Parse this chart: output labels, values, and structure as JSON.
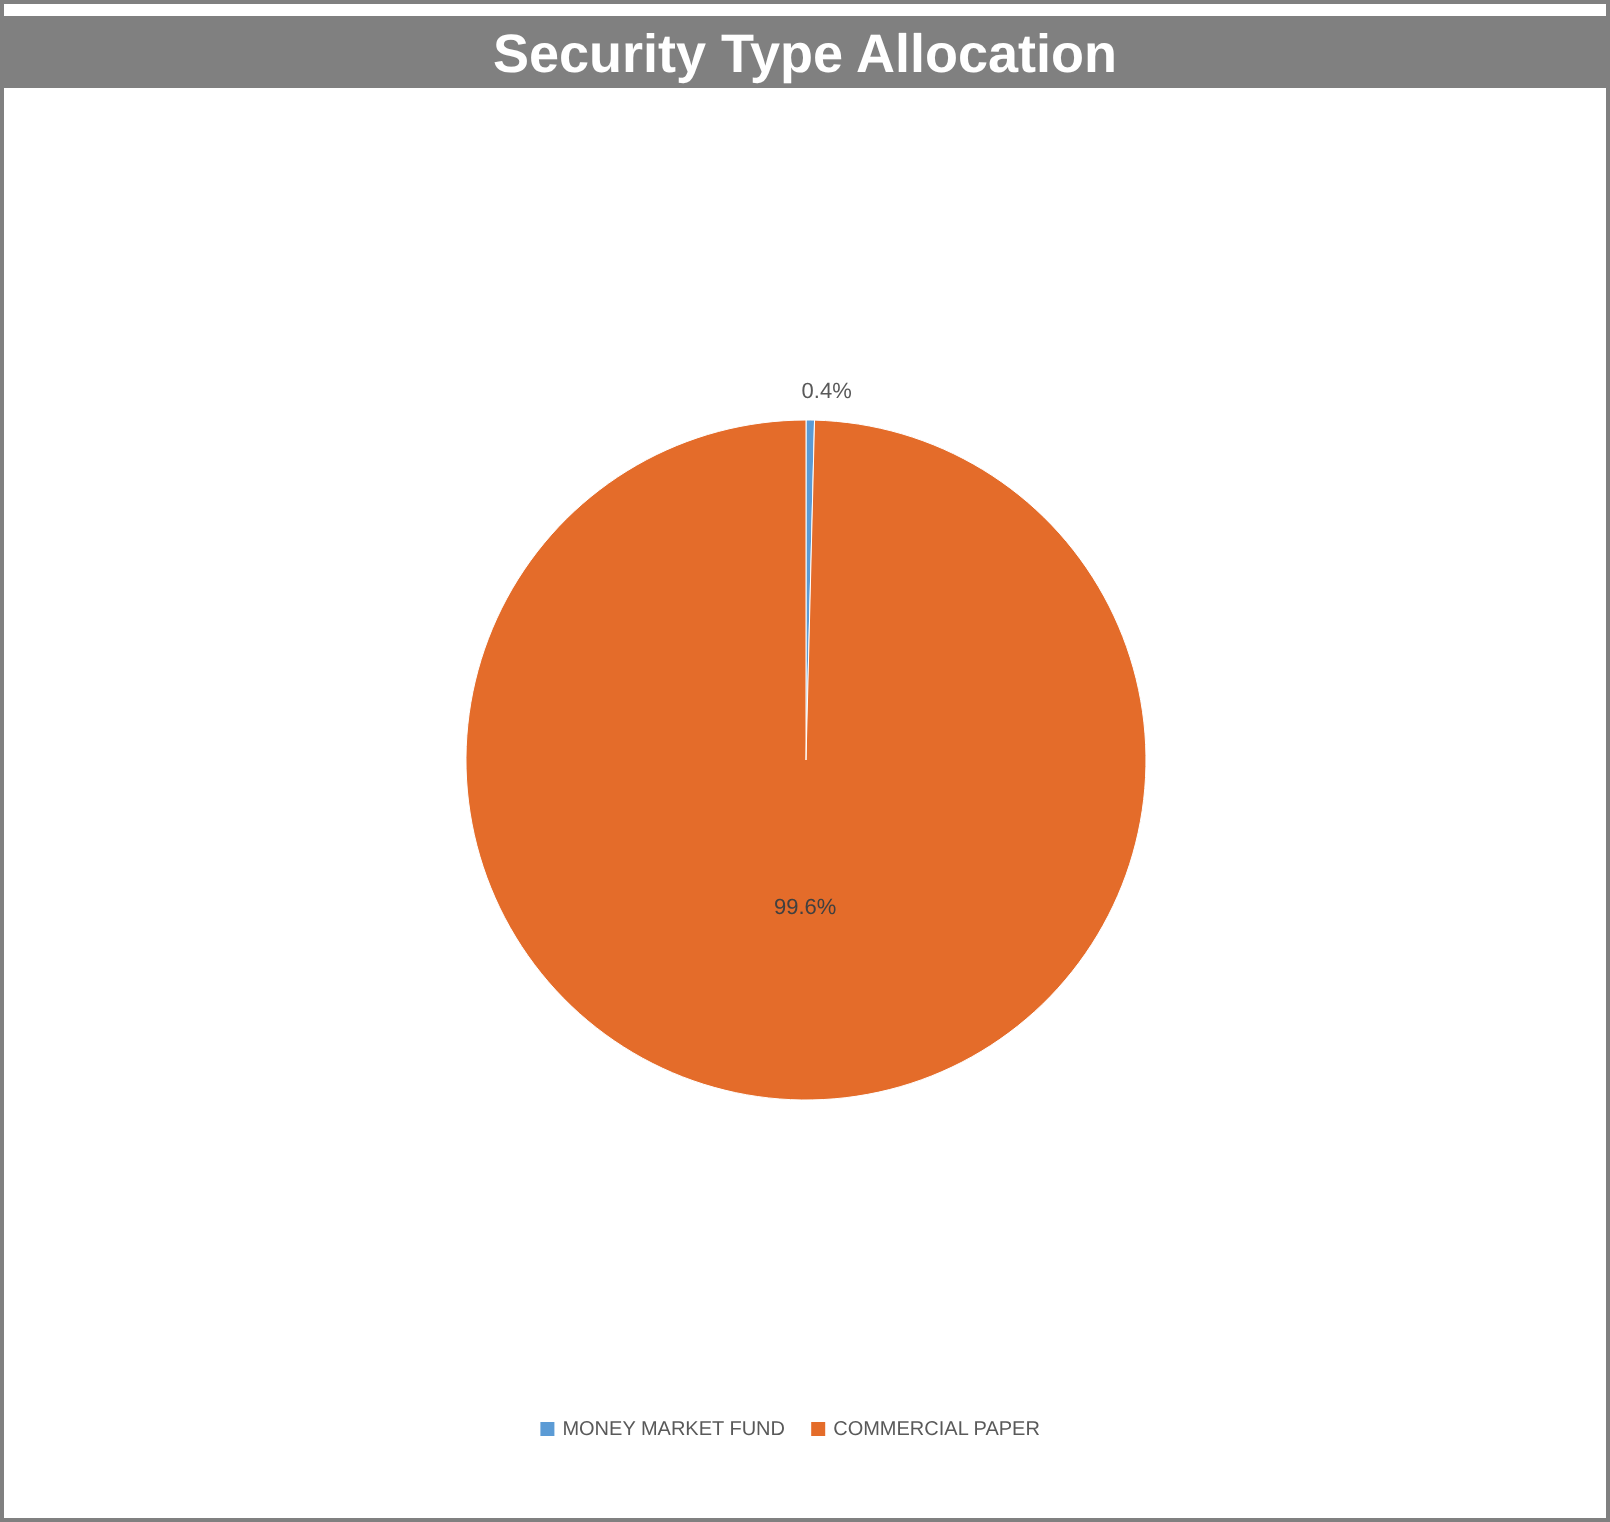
{
  "chart_data": {
    "type": "pie",
    "title": "Security Type Allocation",
    "categories": [
      "MONEY MARKET FUND",
      "COMMERCIAL PAPER"
    ],
    "values": [
      0.4,
      99.6
    ],
    "colors": [
      "#5b9bd5",
      "#e46c2a"
    ],
    "value_labels": [
      "0.4%",
      "99.6%"
    ],
    "legend": "bottom"
  }
}
